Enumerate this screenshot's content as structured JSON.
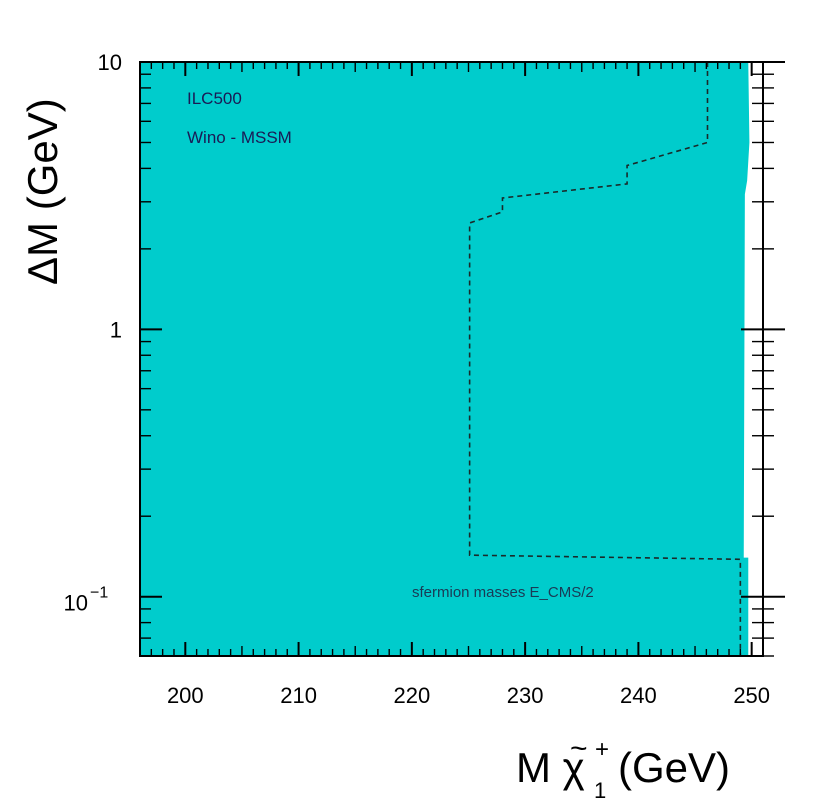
{
  "chart_data": {
    "type": "area",
    "title": "",
    "xlabel_main": "M ",
    "xlabel_chi": "χ",
    "xlabel_tilde": "~",
    "xlabel_sup": "+",
    "xlabel_sub": "1",
    "xlabel_unit": " (GeV)",
    "ylabel": "ΔM (GeV)",
    "xlim": [
      196,
      251
    ],
    "ylim": [
      0.06,
      10
    ],
    "yscale": "log",
    "x_ticks": [
      200,
      210,
      220,
      230,
      240,
      250
    ],
    "x_tick_labels": [
      "200",
      "210",
      "220",
      "230",
      "240",
      "250"
    ],
    "y_ticks": [
      0.1,
      1,
      10
    ],
    "y_tick_labels": {
      "base": "10",
      "exp": "−1",
      "one": "1",
      "ten": "10"
    },
    "fill_color": "#00cccc",
    "excluded_region": {
      "boundary": [
        {
          "x": 249.7,
          "y": 10
        },
        {
          "x": 249.8,
          "y": 5.0
        },
        {
          "x": 249.6,
          "y": 3.6
        },
        {
          "x": 249.4,
          "y": 3.2
        },
        {
          "x": 249.3,
          "y": 0.14
        },
        {
          "x": 249.7,
          "y": 0.14
        },
        {
          "x": 249.7,
          "y": 0.06
        }
      ]
    },
    "dashed_contour": [
      {
        "x": 246.1,
        "y": 10
      },
      {
        "x": 246.1,
        "y": 5.0
      },
      {
        "x": 239.0,
        "y": 4.1
      },
      {
        "x": 239.0,
        "y": 3.5
      },
      {
        "x": 228.0,
        "y": 3.1
      },
      {
        "x": 228.0,
        "y": 2.75
      },
      {
        "x": 225.1,
        "y": 2.5
      },
      {
        "x": 225.1,
        "y": 0.143
      },
      {
        "x": 249.0,
        "y": 0.138
      },
      {
        "x": 249.0,
        "y": 0.06
      }
    ],
    "annotations": [
      "ILC500",
      "Wino - MSSM",
      "sfermion masses E_CMS/2"
    ]
  }
}
